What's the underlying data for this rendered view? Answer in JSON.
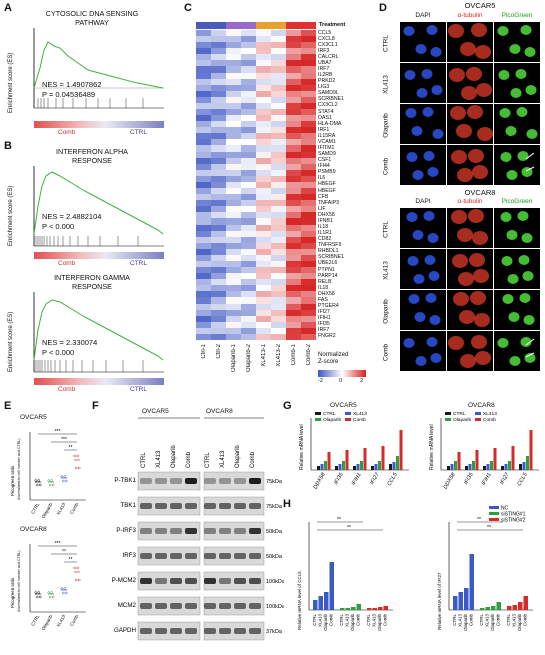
{
  "panels": {
    "A": "A",
    "B": "B",
    "C": "C",
    "D": "D",
    "E": "E",
    "F": "F",
    "G": "G",
    "H": "H"
  },
  "gsea": {
    "ylabel": "Enrichment score (ES)",
    "A": {
      "title1": "CYTOSOLIC DNA SENSING",
      "title2": "PATHWAY",
      "nes": "NES = 1.4907862",
      "p": "P = 0.04536489",
      "left": "Comb",
      "right": "CTRL",
      "ticks": [
        "0.4",
        "0.3",
        "0.2",
        "0.1",
        "0.0"
      ]
    },
    "B1": {
      "title1": "INTERFERON ALPHA",
      "title2": "RESPONSE",
      "nes": "NES = 2.4882104",
      "p": "P <  0.000",
      "left": "Comb",
      "right": "CTRL",
      "ticks": [
        "0.6",
        "0.4",
        "0.2",
        "0.0"
      ]
    },
    "B2": {
      "title1": "INTERFERON GAMMA",
      "title2": "RESPONSE",
      "nes": "NES = 2.330074",
      "p": "P <  0.000",
      "left": "Comb",
      "right": "CTRL",
      "ticks": [
        "0.6",
        "0.4",
        "0.2",
        "0.0"
      ]
    }
  },
  "heatmap": {
    "treatment_label": "Treatment",
    "genes": [
      "CCL5",
      "CXCL8",
      "CX3CL1",
      "IRF3",
      "CALCRL",
      "UBA7",
      "IRF7",
      "IL2RB",
      "PRKD2",
      "LIG3",
      "SAMD9L",
      "SCRIBNE1",
      "CX3CL2",
      "STAT4",
      "OAS1",
      "HLA-DMA",
      "IRF1",
      "IL15RA",
      "VCAM1",
      "IFITM1",
      "SAMD9",
      "CSF1",
      "IFI44",
      "PSMB9",
      "IL6",
      "HBEGF",
      "HBEGF",
      "CFB",
      "TNFAIP3",
      "LIF",
      "DHX58",
      "IFNB1",
      "IL18",
      "IL1R1",
      "CD82",
      "TNFRSF9",
      "RHBDL1",
      "SCRIBNE1",
      "UBE2L6",
      "PTPN1",
      "PARP14",
      "RELB",
      "IL18",
      "DHX58",
      "FAS",
      "PTGER4",
      "IFI27",
      "IFIH1",
      "IFI35",
      "IRF7",
      "FNGR2"
    ],
    "samples": [
      "Ctrl-1",
      "Ctrl-2",
      "Olaparib-1",
      "Olaparib-2",
      "XL413-1",
      "XL413-2",
      "Comb-1",
      "Comb-2"
    ],
    "legend_title1": "Normalized",
    "legend_title2": "Z-score",
    "legend_min": "-2",
    "legend_mid": "0",
    "legend_max": "2"
  },
  "micro": {
    "ovcar5": "OVCAR5",
    "ovcar8": "OVCAR8",
    "cols": [
      "DAPI",
      "α-tubulin",
      "PicoGreen"
    ],
    "rows": [
      "CTRL",
      "XL413",
      "Olaparib",
      "Comb"
    ]
  },
  "E": {
    "ylabel": "Picogreen ratio",
    "ylabel2": "(Normalized to cell number and CTRL)",
    "ovcar5": "OVCAR5",
    "ovcar8": "OVCAR8",
    "groups": [
      "CTRL",
      "Olaparib",
      "XL413",
      "Comb"
    ],
    "sig": [
      "***",
      "***",
      "**"
    ],
    "sig2": [
      "***",
      "**",
      "**"
    ]
  },
  "F": {
    "ovcar5": "OVCAR5",
    "ovcar8": "OVCAR8",
    "lanes": [
      "CTRL",
      "XL413",
      "Olaparib",
      "Comb",
      "CTRL",
      "XL413",
      "Olaparib",
      "Comb"
    ],
    "proteins": [
      "P-TBK1",
      "TBK1",
      "P-IRF3",
      "IRF3",
      "P-MCM2",
      "MCM2",
      "GAPDH"
    ],
    "kda": [
      "75kDa",
      "75kDa",
      "50kDa",
      "50kDa",
      "100kDa",
      "100kDa",
      "37kDa"
    ]
  },
  "G": {
    "ovcar5": "OVCAR5",
    "ovcar8": "OVCAR8",
    "ylabel": "Relative mRNA level",
    "legend": [
      "CTRL",
      "XL413",
      "Olaparib",
      "Comb"
    ],
    "genes": [
      "DDX58",
      "IFI35",
      "IFIH1",
      "IFI27",
      "CCL5"
    ],
    "colors": {
      "CTRL": "#1a1a1a",
      "XL413": "#3a5bc7",
      "Olaparib": "#2e9e3e",
      "Comb": "#d62b2b"
    }
  },
  "H": {
    "legend": [
      "NC",
      "siSTING#1",
      "siSTING#2"
    ],
    "ylabel1": "Relative mRNA level of CCL5",
    "ylabel2": "Relative mRNA level of IFI27",
    "groups": [
      "CTRL",
      "XL413",
      "Olaparib",
      "Comb"
    ],
    "sig": "**",
    "colors": {
      "NC": "#3a5bc7",
      "siSTING#1": "#2e9e3e",
      "siSTING#2": "#d62b2b"
    }
  }
}
